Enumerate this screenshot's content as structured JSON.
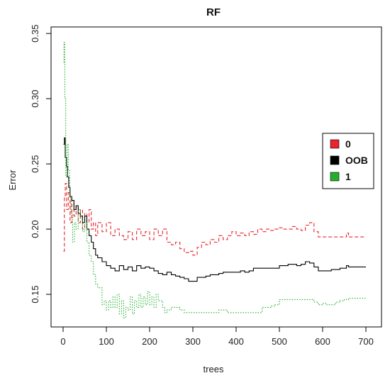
{
  "chart_data": {
    "type": "line",
    "title": "RF",
    "xlabel": "trees",
    "ylabel": "Error",
    "xlim": [
      0,
      700
    ],
    "ylim": [
      0.125,
      0.355
    ],
    "x_ticks": [
      0,
      100,
      200,
      300,
      400,
      500,
      600,
      700
    ],
    "y_ticks": [
      0.15,
      0.2,
      0.25,
      0.3,
      0.35
    ],
    "y_tick_labels": [
      "0.15",
      "0.20",
      "0.25",
      "0.30",
      "0.35"
    ],
    "legend_position": "right",
    "series": [
      {
        "name": "0",
        "color": "#e8262c",
        "style": "dashed",
        "points": [
          [
            1,
            0.183
          ],
          [
            3,
            0.225
          ],
          [
            5,
            0.235
          ],
          [
            8,
            0.215
          ],
          [
            12,
            0.228
          ],
          [
            16,
            0.205
          ],
          [
            20,
            0.222
          ],
          [
            25,
            0.21
          ],
          [
            30,
            0.218
          ],
          [
            35,
            0.205
          ],
          [
            40,
            0.215
          ],
          [
            45,
            0.2
          ],
          [
            50,
            0.212
          ],
          [
            55,
            0.205
          ],
          [
            60,
            0.215
          ],
          [
            65,
            0.2
          ],
          [
            70,
            0.205
          ],
          [
            75,
            0.195
          ],
          [
            80,
            0.205
          ],
          [
            90,
            0.198
          ],
          [
            100,
            0.205
          ],
          [
            110,
            0.195
          ],
          [
            120,
            0.2
          ],
          [
            130,
            0.195
          ],
          [
            140,
            0.192
          ],
          [
            150,
            0.198
          ],
          [
            160,
            0.192
          ],
          [
            170,
            0.2
          ],
          [
            180,
            0.195
          ],
          [
            190,
            0.198
          ],
          [
            200,
            0.192
          ],
          [
            210,
            0.2
          ],
          [
            220,
            0.195
          ],
          [
            230,
            0.2
          ],
          [
            240,
            0.19
          ],
          [
            250,
            0.188
          ],
          [
            260,
            0.19
          ],
          [
            270,
            0.185
          ],
          [
            280,
            0.182
          ],
          [
            290,
            0.183
          ],
          [
            300,
            0.18
          ],
          [
            310,
            0.186
          ],
          [
            320,
            0.19
          ],
          [
            330,
            0.188
          ],
          [
            340,
            0.192
          ],
          [
            350,
            0.19
          ],
          [
            360,
            0.195
          ],
          [
            370,
            0.192
          ],
          [
            380,
            0.195
          ],
          [
            390,
            0.198
          ],
          [
            400,
            0.195
          ],
          [
            410,
            0.197
          ],
          [
            420,
            0.195
          ],
          [
            430,
            0.198
          ],
          [
            440,
            0.196
          ],
          [
            450,
            0.2
          ],
          [
            460,
            0.198
          ],
          [
            470,
            0.2
          ],
          [
            480,
            0.199
          ],
          [
            490,
            0.2
          ],
          [
            500,
            0.201
          ],
          [
            510,
            0.2
          ],
          [
            520,
            0.2
          ],
          [
            530,
            0.202
          ],
          [
            540,
            0.2
          ],
          [
            550,
            0.199
          ],
          [
            560,
            0.203
          ],
          [
            570,
            0.205
          ],
          [
            580,
            0.198
          ],
          [
            590,
            0.194
          ],
          [
            600,
            0.194
          ],
          [
            620,
            0.194
          ],
          [
            640,
            0.194
          ],
          [
            655,
            0.197
          ],
          [
            660,
            0.194
          ],
          [
            680,
            0.194
          ],
          [
            700,
            0.194
          ]
        ]
      },
      {
        "name": "OOB",
        "color": "#000000",
        "style": "solid",
        "points": [
          [
            1,
            0.265
          ],
          [
            3,
            0.27
          ],
          [
            5,
            0.255
          ],
          [
            8,
            0.248
          ],
          [
            10,
            0.24
          ],
          [
            13,
            0.232
          ],
          [
            16,
            0.225
          ],
          [
            20,
            0.222
          ],
          [
            25,
            0.215
          ],
          [
            30,
            0.218
          ],
          [
            35,
            0.212
          ],
          [
            40,
            0.21
          ],
          [
            45,
            0.205
          ],
          [
            50,
            0.21
          ],
          [
            55,
            0.2
          ],
          [
            60,
            0.195
          ],
          [
            65,
            0.19
          ],
          [
            70,
            0.185
          ],
          [
            75,
            0.18
          ],
          [
            80,
            0.178
          ],
          [
            90,
            0.175
          ],
          [
            100,
            0.172
          ],
          [
            110,
            0.17
          ],
          [
            120,
            0.168
          ],
          [
            130,
            0.172
          ],
          [
            140,
            0.169
          ],
          [
            150,
            0.171
          ],
          [
            160,
            0.168
          ],
          [
            170,
            0.172
          ],
          [
            180,
            0.17
          ],
          [
            190,
            0.171
          ],
          [
            200,
            0.17
          ],
          [
            210,
            0.168
          ],
          [
            220,
            0.166
          ],
          [
            230,
            0.165
          ],
          [
            240,
            0.167
          ],
          [
            250,
            0.165
          ],
          [
            260,
            0.164
          ],
          [
            270,
            0.163
          ],
          [
            280,
            0.162
          ],
          [
            290,
            0.16
          ],
          [
            300,
            0.16
          ],
          [
            310,
            0.163
          ],
          [
            320,
            0.163
          ],
          [
            330,
            0.164
          ],
          [
            340,
            0.165
          ],
          [
            350,
            0.165
          ],
          [
            360,
            0.166
          ],
          [
            370,
            0.167
          ],
          [
            380,
            0.167
          ],
          [
            390,
            0.167
          ],
          [
            400,
            0.167
          ],
          [
            410,
            0.168
          ],
          [
            420,
            0.167
          ],
          [
            430,
            0.168
          ],
          [
            440,
            0.17
          ],
          [
            450,
            0.17
          ],
          [
            460,
            0.17
          ],
          [
            470,
            0.17
          ],
          [
            480,
            0.17
          ],
          [
            490,
            0.17
          ],
          [
            500,
            0.172
          ],
          [
            510,
            0.172
          ],
          [
            520,
            0.173
          ],
          [
            530,
            0.173
          ],
          [
            540,
            0.172
          ],
          [
            550,
            0.173
          ],
          [
            560,
            0.175
          ],
          [
            570,
            0.174
          ],
          [
            580,
            0.171
          ],
          [
            590,
            0.168
          ],
          [
            600,
            0.168
          ],
          [
            620,
            0.169
          ],
          [
            640,
            0.17
          ],
          [
            655,
            0.172
          ],
          [
            660,
            0.171
          ],
          [
            680,
            0.171
          ],
          [
            700,
            0.171
          ]
        ]
      },
      {
        "name": "1",
        "color": "#22b02c",
        "style": "dotted",
        "points": [
          [
            1,
            0.328
          ],
          [
            2,
            0.343
          ],
          [
            4,
            0.3
          ],
          [
            6,
            0.24
          ],
          [
            9,
            0.265
          ],
          [
            12,
            0.245
          ],
          [
            15,
            0.225
          ],
          [
            18,
            0.212
          ],
          [
            22,
            0.19
          ],
          [
            26,
            0.205
          ],
          [
            30,
            0.2
          ],
          [
            35,
            0.215
          ],
          [
            40,
            0.208
          ],
          [
            45,
            0.198
          ],
          [
            50,
            0.205
          ],
          [
            55,
            0.19
          ],
          [
            60,
            0.18
          ],
          [
            65,
            0.175
          ],
          [
            70,
            0.165
          ],
          [
            75,
            0.158
          ],
          [
            80,
            0.155
          ],
          [
            90,
            0.142
          ],
          [
            95,
            0.145
          ],
          [
            100,
            0.138
          ],
          [
            105,
            0.145
          ],
          [
            110,
            0.14
          ],
          [
            115,
            0.148
          ],
          [
            120,
            0.14
          ],
          [
            125,
            0.15
          ],
          [
            130,
            0.135
          ],
          [
            135,
            0.145
          ],
          [
            140,
            0.132
          ],
          [
            145,
            0.14
          ],
          [
            150,
            0.138
          ],
          [
            155,
            0.148
          ],
          [
            160,
            0.135
          ],
          [
            165,
            0.145
          ],
          [
            170,
            0.14
          ],
          [
            175,
            0.15
          ],
          [
            180,
            0.14
          ],
          [
            185,
            0.148
          ],
          [
            190,
            0.142
          ],
          [
            195,
            0.152
          ],
          [
            200,
            0.142
          ],
          [
            205,
            0.148
          ],
          [
            210,
            0.14
          ],
          [
            215,
            0.15
          ],
          [
            220,
            0.145
          ],
          [
            230,
            0.14
          ],
          [
            235,
            0.136
          ],
          [
            240,
            0.138
          ],
          [
            250,
            0.14
          ],
          [
            260,
            0.14
          ],
          [
            270,
            0.138
          ],
          [
            280,
            0.136
          ],
          [
            290,
            0.136
          ],
          [
            300,
            0.136
          ],
          [
            320,
            0.136
          ],
          [
            340,
            0.136
          ],
          [
            360,
            0.138
          ],
          [
            380,
            0.136
          ],
          [
            400,
            0.136
          ],
          [
            420,
            0.136
          ],
          [
            440,
            0.136
          ],
          [
            460,
            0.14
          ],
          [
            470,
            0.14
          ],
          [
            480,
            0.141
          ],
          [
            490,
            0.142
          ],
          [
            500,
            0.146
          ],
          [
            510,
            0.146
          ],
          [
            520,
            0.146
          ],
          [
            540,
            0.146
          ],
          [
            560,
            0.146
          ],
          [
            570,
            0.146
          ],
          [
            580,
            0.144
          ],
          [
            590,
            0.142
          ],
          [
            600,
            0.143
          ],
          [
            610,
            0.142
          ],
          [
            620,
            0.142
          ],
          [
            630,
            0.144
          ],
          [
            640,
            0.145
          ],
          [
            650,
            0.146
          ],
          [
            660,
            0.147
          ],
          [
            680,
            0.147
          ],
          [
            700,
            0.147
          ]
        ]
      }
    ],
    "legend_order": [
      "0",
      "OOB",
      "1"
    ]
  }
}
